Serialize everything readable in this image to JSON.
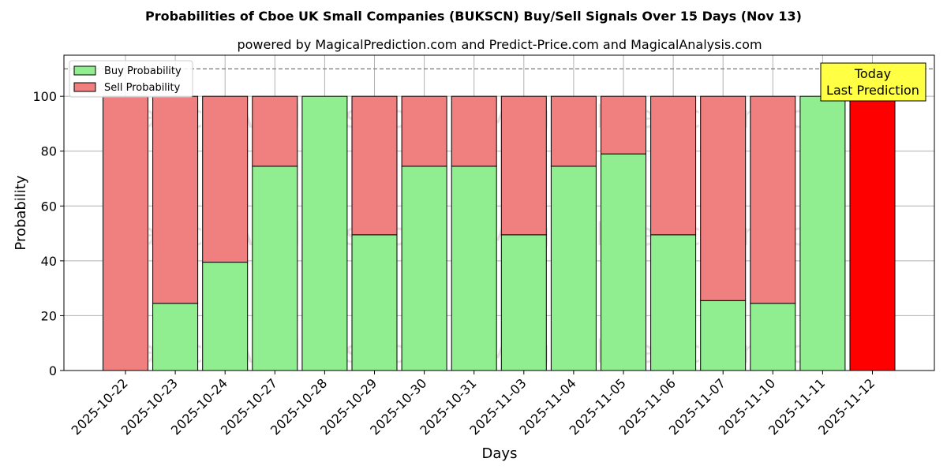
{
  "chart_data": {
    "type": "bar",
    "stacked": true,
    "title": "Probabilities of Cboe UK Small Companies (BUKSCN) Buy/Sell Signals Over 15 Days (Nov 13)",
    "subtitle": "powered by MagicalPrediction.com and Predict-Price.com and MagicalAnalysis.com",
    "xlabel": "Days",
    "ylabel": "Probability",
    "ylim": [
      0,
      115
    ],
    "yticks": [
      0,
      20,
      40,
      60,
      80,
      100
    ],
    "reference_line": 110,
    "grid": true,
    "legend_position": "top-left",
    "categories": [
      "2025-10-22",
      "2025-10-23",
      "2025-10-24",
      "2025-10-27",
      "2025-10-28",
      "2025-10-29",
      "2025-10-30",
      "2025-10-31",
      "2025-11-03",
      "2025-11-04",
      "2025-11-05",
      "2025-11-06",
      "2025-11-07",
      "2025-11-10",
      "2025-11-11",
      "2025-11-12"
    ],
    "series": [
      {
        "name": "Buy Probability",
        "color": "#90ee90",
        "values": [
          0,
          24.5,
          39.5,
          74.5,
          100,
          49.5,
          74.5,
          74.5,
          49.5,
          74.5,
          79,
          49.5,
          25.5,
          24.5,
          100,
          0
        ]
      },
      {
        "name": "Sell Probability",
        "color": "#f08080",
        "values": [
          100,
          75.5,
          60.5,
          25.5,
          0,
          50.5,
          25.5,
          25.5,
          50.5,
          25.5,
          21,
          50.5,
          74.5,
          75.5,
          0,
          100
        ]
      }
    ],
    "highlight": {
      "index": 15,
      "color": "#ff0000"
    },
    "annotation": {
      "lines": [
        "Today",
        "Last Prediction"
      ],
      "color": "#ffff44"
    },
    "watermarks": [
      "MagicalAnalysis.com",
      "MagicalPrediction.com"
    ]
  }
}
